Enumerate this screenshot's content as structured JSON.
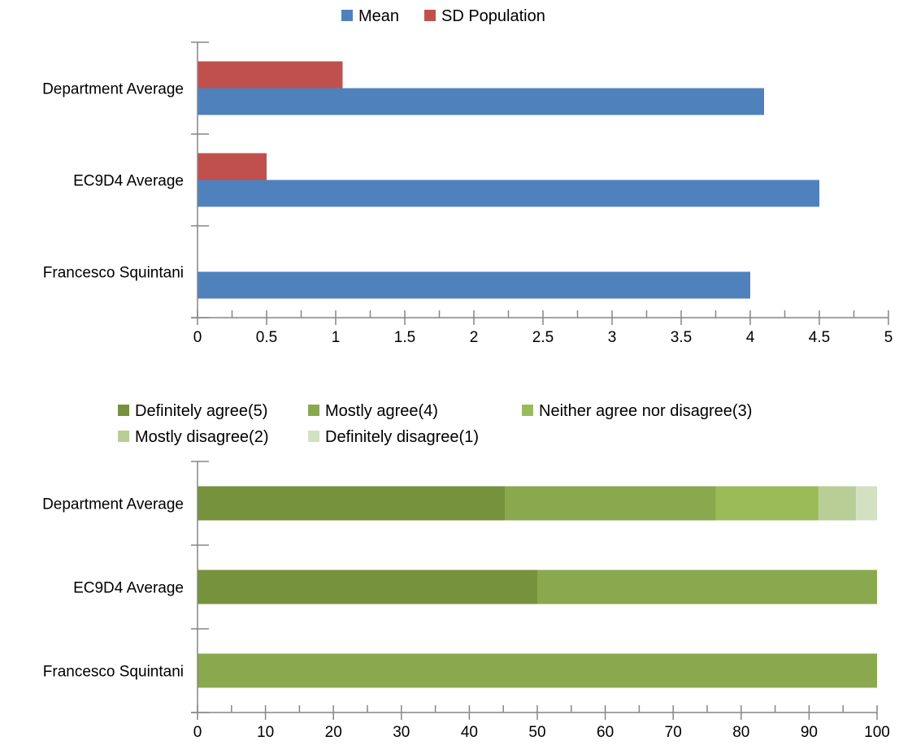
{
  "chart_data": [
    {
      "type": "bar",
      "orientation": "horizontal",
      "categories": [
        "Department Average",
        "EC9D4 Average",
        "Francesco Squintani"
      ],
      "series": [
        {
          "name": "Mean",
          "color": "#4F81BD",
          "values": [
            4.1,
            4.5,
            4.0
          ]
        },
        {
          "name": "SD Population",
          "color": "#C0504D",
          "values": [
            1.05,
            0.5,
            0
          ]
        }
      ],
      "xlim": [
        0,
        5
      ],
      "xticks": [
        "0",
        "0.5",
        "1",
        "1.5",
        "2",
        "2.5",
        "3",
        "3.5",
        "4",
        "4.5",
        "5"
      ],
      "legend_position": "top",
      "grid": false
    },
    {
      "type": "bar",
      "orientation": "horizontal",
      "stacked": true,
      "categories": [
        "Department Average",
        "EC9D4 Average",
        "Francesco Squintani"
      ],
      "series": [
        {
          "name": "Definitely agree(5)",
          "color": "#76923C",
          "values": [
            45.3,
            50,
            0
          ]
        },
        {
          "name": "Mostly agree(4)",
          "color": "#8AA84E",
          "values": [
            31,
            50,
            100
          ]
        },
        {
          "name": "Neither agree nor disagree(3)",
          "color": "#9BBB59",
          "values": [
            15.1,
            0,
            0
          ]
        },
        {
          "name": "Mostly disagree(2)",
          "color": "#B8CE96",
          "values": [
            5.5,
            0,
            0
          ]
        },
        {
          "name": "Definitely disagree(1)",
          "color": "#D3E0C2",
          "values": [
            3.1,
            0,
            0
          ]
        }
      ],
      "xlim": [
        0,
        100
      ],
      "xticks": [
        "0",
        "10",
        "20",
        "30",
        "40",
        "50",
        "60",
        "70",
        "80",
        "90",
        "100"
      ],
      "legend_position": "top",
      "grid": false
    }
  ]
}
